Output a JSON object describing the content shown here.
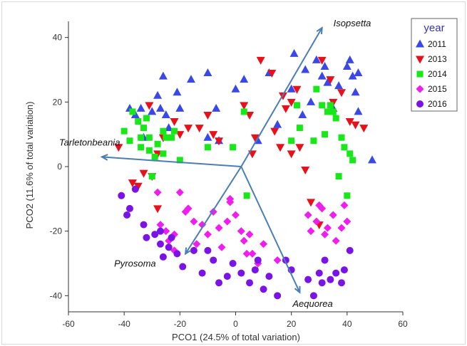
{
  "chart_data": {
    "type": "scatter",
    "xlabel": "PCO1 (24.5% of total variation)",
    "ylabel": "PCO2 (11.6% of total variation)",
    "xlim": [
      -60,
      60
    ],
    "ylim": [
      -45,
      45
    ],
    "xticks": [
      -60,
      -40,
      -20,
      0,
      20,
      40,
      60
    ],
    "yticks": [
      -40,
      -20,
      0,
      20,
      40
    ],
    "legend": {
      "title": "year",
      "placement": "top-right"
    },
    "series": [
      {
        "name": "2011",
        "color": "#3b48e8",
        "marker": "triangle-up",
        "points": [
          [
            -38,
            18
          ],
          [
            -36,
            16
          ],
          [
            -34,
            18
          ],
          [
            -30,
            17
          ],
          [
            -28,
            22
          ],
          [
            -27,
            18
          ],
          [
            -26,
            28
          ],
          [
            -25,
            16
          ],
          [
            -21,
            23
          ],
          [
            -16,
            27
          ],
          [
            -10,
            29
          ],
          [
            -10,
            9
          ],
          [
            -7,
            18
          ],
          [
            -6,
            8
          ],
          [
            0,
            24
          ],
          [
            3,
            27
          ],
          [
            8,
            8
          ],
          [
            12,
            29
          ],
          [
            15,
            13
          ],
          [
            20,
            24
          ],
          [
            21,
            35
          ],
          [
            24,
            16
          ],
          [
            25,
            30
          ],
          [
            27,
            20
          ],
          [
            29,
            33
          ],
          [
            31,
            28
          ],
          [
            32,
            31
          ],
          [
            33,
            26
          ],
          [
            35,
            18
          ],
          [
            37,
            25
          ],
          [
            40,
            31
          ],
          [
            41,
            33
          ],
          [
            42,
            28
          ],
          [
            43,
            23
          ],
          [
            44,
            29
          ],
          [
            44,
            17
          ],
          [
            49,
            2
          ],
          [
            -33,
            9
          ],
          [
            -24,
            12
          ],
          [
            -20,
            18
          ]
        ]
      },
      {
        "name": "2013",
        "color": "#e8101a",
        "marker": "triangle-down",
        "points": [
          [
            -42,
            6
          ],
          [
            -37,
            -5
          ],
          [
            -35,
            -6
          ],
          [
            -33,
            -2
          ],
          [
            -31,
            19
          ],
          [
            -30,
            -3
          ],
          [
            -28,
            4
          ],
          [
            -26,
            9
          ],
          [
            -22,
            14
          ],
          [
            -20,
            10
          ],
          [
            -17,
            12
          ],
          [
            -13,
            12
          ],
          [
            -10,
            16
          ],
          [
            -8,
            10
          ],
          [
            -6,
            8
          ],
          [
            3,
            19
          ],
          [
            5,
            16
          ],
          [
            6,
            4
          ],
          [
            7,
            9
          ],
          [
            9,
            33
          ],
          [
            13,
            29
          ],
          [
            14,
            11
          ],
          [
            16,
            6
          ],
          [
            17,
            22
          ],
          [
            18,
            18
          ],
          [
            20,
            20
          ],
          [
            20,
            4
          ],
          [
            22,
            24
          ],
          [
            23,
            6
          ],
          [
            25,
            -1
          ],
          [
            27,
            -11
          ],
          [
            30,
            -18
          ],
          [
            31,
            33
          ],
          [
            34,
            27
          ],
          [
            35,
            20
          ],
          [
            38,
            23
          ],
          [
            41,
            14
          ],
          [
            43,
            13
          ],
          [
            46,
            12
          ],
          [
            -28,
            -13
          ]
        ]
      },
      {
        "name": "2014",
        "color": "#17e817",
        "marker": "square",
        "points": [
          [
            -40,
            11
          ],
          [
            -38,
            8
          ],
          [
            -37,
            17
          ],
          [
            -35,
            14
          ],
          [
            -34,
            9
          ],
          [
            -34,
            6
          ],
          [
            -33,
            12
          ],
          [
            -32,
            15
          ],
          [
            -31,
            9
          ],
          [
            -31,
            5
          ],
          [
            -30,
            -3
          ],
          [
            -29,
            3
          ],
          [
            -28,
            7
          ],
          [
            -26,
            4
          ],
          [
            -26,
            11
          ],
          [
            -25,
            9
          ],
          [
            -23,
            9
          ],
          [
            -22,
            11
          ],
          [
            -20,
            2
          ],
          [
            -10,
            6
          ],
          [
            -1,
            6
          ],
          [
            3,
            17
          ],
          [
            4,
            -9
          ],
          [
            20,
            8
          ],
          [
            22,
            19
          ],
          [
            23,
            12
          ],
          [
            28,
            8
          ],
          [
            29,
            24
          ],
          [
            31,
            19
          ],
          [
            32,
            10
          ],
          [
            33,
            17
          ],
          [
            34,
            19
          ],
          [
            35,
            17
          ],
          [
            36,
            15
          ],
          [
            37,
            -3
          ],
          [
            38,
            9
          ],
          [
            39,
            6
          ],
          [
            40,
            -9
          ],
          [
            41,
            4
          ],
          [
            42,
            2
          ]
        ]
      },
      {
        "name": "2015",
        "color": "#f01cf0",
        "marker": "diamond",
        "points": [
          [
            -28,
            -8
          ],
          [
            -27,
            -18
          ],
          [
            -25,
            -20
          ],
          [
            -24,
            -23
          ],
          [
            -22,
            -21
          ],
          [
            -22,
            -26
          ],
          [
            -20,
            -8
          ],
          [
            -18,
            -14
          ],
          [
            -17,
            -13
          ],
          [
            -15,
            -17
          ],
          [
            -14,
            -24
          ],
          [
            -12,
            -18
          ],
          [
            -10,
            -21
          ],
          [
            -8,
            -14
          ],
          [
            -6,
            -19
          ],
          [
            -5,
            -25
          ],
          [
            -3,
            -17
          ],
          [
            -2,
            -11
          ],
          [
            -2,
            -10
          ],
          [
            0,
            -15
          ],
          [
            2,
            -20
          ],
          [
            3,
            -23
          ],
          [
            4,
            -27
          ],
          [
            5,
            -21
          ],
          [
            6,
            -27
          ],
          [
            8,
            -30
          ],
          [
            10,
            -24
          ],
          [
            15,
            -29
          ],
          [
            26,
            -15
          ],
          [
            27,
            -20
          ],
          [
            29,
            -17
          ],
          [
            30,
            -12
          ],
          [
            31,
            -13
          ],
          [
            32,
            -21
          ],
          [
            33,
            -19
          ],
          [
            35,
            -15
          ],
          [
            36,
            -23
          ],
          [
            38,
            -19
          ],
          [
            39,
            -12
          ],
          [
            40,
            -17
          ]
        ]
      },
      {
        "name": "2016",
        "color": "#7b12e6",
        "marker": "circle",
        "points": [
          [
            -41,
            -9
          ],
          [
            -39,
            -15
          ],
          [
            -38,
            -13
          ],
          [
            -36,
            -7
          ],
          [
            -33,
            -18
          ],
          [
            -32,
            -22
          ],
          [
            -29,
            -21
          ],
          [
            -27,
            -20
          ],
          [
            -27,
            -24
          ],
          [
            -26,
            -28
          ],
          [
            -24,
            -25
          ],
          [
            -23,
            -22
          ],
          [
            -21,
            -27
          ],
          [
            -19,
            -31
          ],
          [
            -15,
            -26
          ],
          [
            -12,
            -33
          ],
          [
            -10,
            -26
          ],
          [
            -8,
            -29
          ],
          [
            -6,
            -36
          ],
          [
            -3,
            -34
          ],
          [
            -1,
            -30
          ],
          [
            2,
            -33
          ],
          [
            5,
            -36
          ],
          [
            7,
            -32
          ],
          [
            8,
            -29
          ],
          [
            10,
            -38
          ],
          [
            12,
            -34
          ],
          [
            15,
            -40
          ],
          [
            18,
            -29
          ],
          [
            20,
            -32
          ],
          [
            26,
            -35
          ],
          [
            28,
            -40
          ],
          [
            30,
            -33
          ],
          [
            31,
            -36
          ],
          [
            32,
            -29
          ],
          [
            34,
            -35
          ],
          [
            36,
            -33
          ],
          [
            38,
            -36
          ],
          [
            39,
            -32
          ],
          [
            41,
            -26
          ]
        ]
      }
    ],
    "vectors": [
      {
        "label": "Isopsetta",
        "x": 31,
        "y": 43
      },
      {
        "label": "Tarletonbeania",
        "x": -48,
        "y": 3
      },
      {
        "label": "Pyrosoma",
        "x": -18,
        "y": -27
      },
      {
        "label": "Aequorea",
        "x": 23,
        "y": -39
      }
    ],
    "vector_origin": {
      "x": 2,
      "y": 0
    }
  }
}
